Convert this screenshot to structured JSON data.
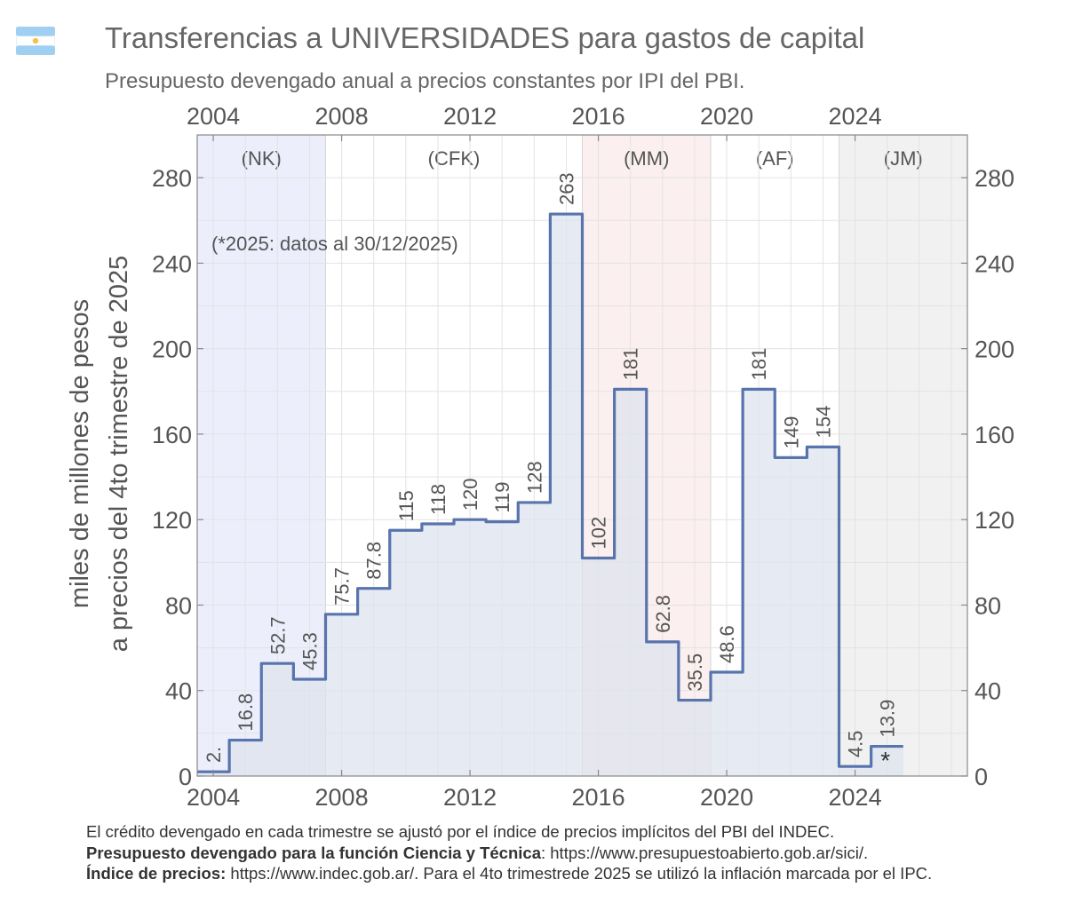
{
  "header": {
    "title": "Transferencias a UNIVERSIDADES para gastos de capital",
    "subtitle": "Presupuesto devengado anual a precios constantes por IPI del PBI."
  },
  "footer": {
    "line1": "El crédito devengado en cada trimestre se ajustó por el índice de precios implícitos del PBI del INDEC.",
    "line2_bold": "Presupuesto devengado para la función Ciencia y Técnica",
    "line2_rest": ": https://www.presupuestoabierto.gob.ar/sici/.",
    "line3_bold": "Índice de precios:",
    "line3_rest": " https://www.indec.gob.ar/. Para el 4to trimestrede 2025 se utilizó la inflación marcada por el IPC."
  },
  "chart_data": {
    "type": "area",
    "title": "Transferencias a UNIVERSIDADES para gastos de capital",
    "subtitle": "Presupuesto devengado anual a precios constantes por IPI del PBI.",
    "ylabel_line1": "miles de millones de pesos",
    "ylabel_line2": "a precios del 4to trimestre de 2025",
    "xlim": [
      2003.5,
      2027.5
    ],
    "ylim": [
      0,
      300
    ],
    "x_ticks": [
      2004,
      2008,
      2012,
      2016,
      2020,
      2024
    ],
    "y_ticks": [
      0,
      40,
      80,
      120,
      160,
      200,
      240,
      280
    ],
    "note": "(*2025: datos al 30/12/2025)",
    "asterisk": "*",
    "series": [
      {
        "color": "#5874ad",
        "fill": "#dde3ee",
        "points": [
          {
            "year": 2004,
            "value": 2.0,
            "label": "2."
          },
          {
            "year": 2005,
            "value": 16.8,
            "label": "16.8"
          },
          {
            "year": 2006,
            "value": 52.7,
            "label": "52.7"
          },
          {
            "year": 2007,
            "value": 45.3,
            "label": "45.3"
          },
          {
            "year": 2008,
            "value": 75.7,
            "label": "75.7"
          },
          {
            "year": 2009,
            "value": 87.8,
            "label": "87.8"
          },
          {
            "year": 2010,
            "value": 115,
            "label": "115"
          },
          {
            "year": 2011,
            "value": 118,
            "label": "118"
          },
          {
            "year": 2012,
            "value": 120,
            "label": "120"
          },
          {
            "year": 2013,
            "value": 119,
            "label": "119"
          },
          {
            "year": 2014,
            "value": 128,
            "label": "128"
          },
          {
            "year": 2015,
            "value": 263,
            "label": "263"
          },
          {
            "year": 2016,
            "value": 102,
            "label": "102"
          },
          {
            "year": 2017,
            "value": 181,
            "label": "181"
          },
          {
            "year": 2018,
            "value": 62.8,
            "label": "62.8"
          },
          {
            "year": 2019,
            "value": 35.5,
            "label": "35.5"
          },
          {
            "year": 2020,
            "value": 48.6,
            "label": "48.6"
          },
          {
            "year": 2021,
            "value": 181,
            "label": "181"
          },
          {
            "year": 2022,
            "value": 149,
            "label": "149"
          },
          {
            "year": 2023,
            "value": 154,
            "label": "154"
          },
          {
            "year": 2024,
            "value": 4.5,
            "label": "4.5"
          },
          {
            "year": 2025,
            "value": 13.9,
            "label": "13.9"
          }
        ]
      }
    ],
    "periods": [
      {
        "label": "(NK)",
        "start": 2003.5,
        "end": 2007.5,
        "color": "#eceefc"
      },
      {
        "label": "(CFK)",
        "start": 2007.5,
        "end": 2015.5,
        "color": "#ffffff"
      },
      {
        "label": "(MM)",
        "start": 2015.5,
        "end": 2019.5,
        "color": "#fcefef"
      },
      {
        "label": "(AF)",
        "start": 2019.5,
        "end": 2023.5,
        "color": "#ffffff"
      },
      {
        "label": "(JM)",
        "start": 2023.5,
        "end": 2027.5,
        "color": "#f1f1f1"
      }
    ],
    "grid": true,
    "legend": "none"
  }
}
